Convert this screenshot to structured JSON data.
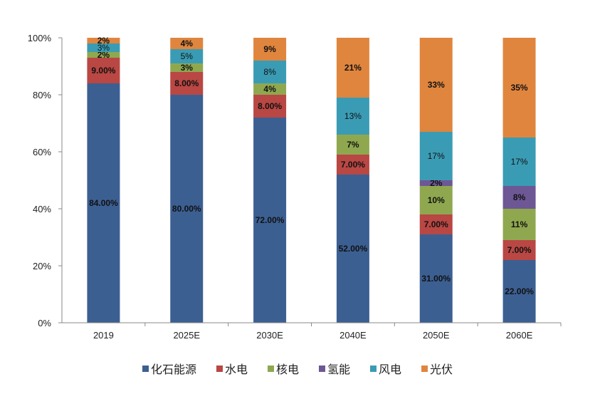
{
  "chart_data": {
    "type": "bar",
    "stacked": true,
    "categories": [
      "2019",
      "2025E",
      "2030E",
      "2040E",
      "2050E",
      "2060E"
    ],
    "ylim": [
      0,
      100
    ],
    "yticks": [
      "0%",
      "20%",
      "40%",
      "60%",
      "80%",
      "100%"
    ],
    "legend_position": "bottom",
    "grid": false,
    "series": [
      {
        "name": "化石能源",
        "color": "#3C5F92",
        "values": [
          84,
          80,
          72,
          52,
          31,
          22
        ],
        "labels": [
          "84.00%",
          "80.00%",
          "72.00%",
          "52.00%",
          "31.00%",
          "22.00%"
        ]
      },
      {
        "name": "水电",
        "color": "#B94743",
        "values": [
          9,
          8,
          8,
          7,
          7,
          7
        ],
        "labels": [
          "9.00%",
          "8.00%",
          "8.00%",
          "7.00%",
          "7.00%",
          "7.00%"
        ]
      },
      {
        "name": "核电",
        "color": "#8FA84F",
        "values": [
          2,
          3,
          4,
          7,
          10,
          11
        ],
        "labels": [
          "2%",
          "3%",
          "4%",
          "7%",
          "10%",
          "11%"
        ]
      },
      {
        "name": "氢能",
        "color": "#6E5795",
        "values": [
          0,
          0,
          0,
          0,
          2,
          8
        ],
        "labels": [
          "",
          "",
          "",
          "",
          "2%",
          "8%"
        ]
      },
      {
        "name": "风电",
        "color": "#3A9CB4",
        "values": [
          3,
          5,
          8,
          13,
          17,
          17
        ],
        "labels": [
          "3%",
          "5%",
          "8%",
          "13%",
          "17%",
          "17%"
        ]
      },
      {
        "name": "光伏",
        "color": "#E0853E",
        "values": [
          2,
          4,
          9,
          21,
          33,
          35
        ],
        "labels": [
          "2%",
          "4%",
          "9%",
          "21%",
          "33%",
          "35%"
        ]
      }
    ]
  }
}
